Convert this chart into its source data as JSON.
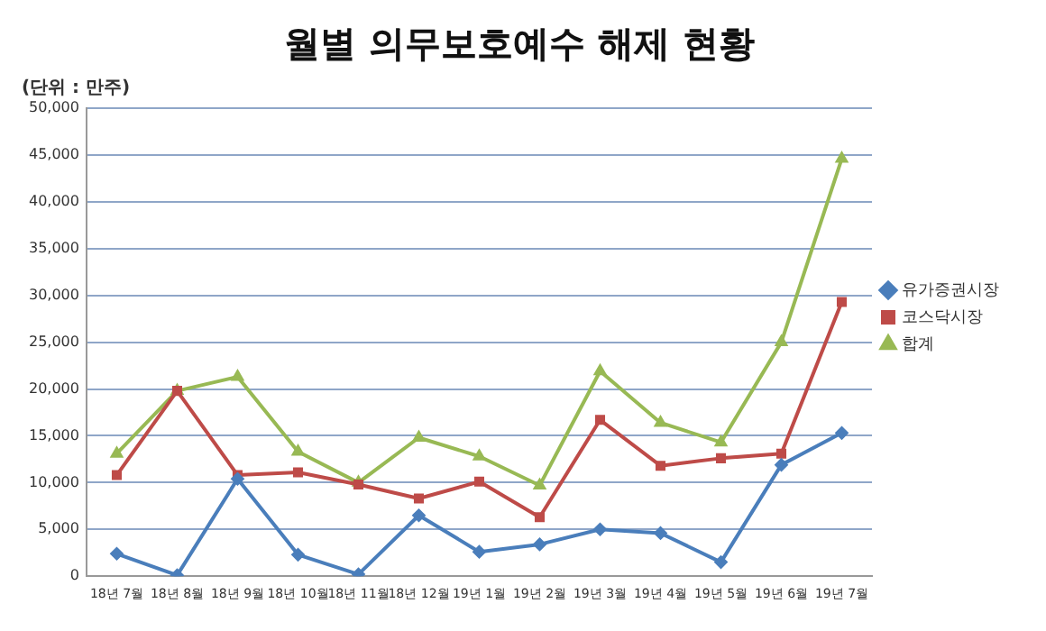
{
  "chart_data": {
    "type": "line",
    "title": "월별 의무보호예수 해제 현황",
    "ylabel": "(단위 : 만주)",
    "categories": [
      "18년 7월",
      "18년 8월",
      "18년 9월",
      "18년 10월",
      "18년 11월",
      "18년 12월",
      "19년 1월",
      "19년 2월",
      "19년 3월",
      "19년 4월",
      "19년 5월",
      "19년 6월",
      "19년 7월"
    ],
    "series": [
      {
        "name": "유가증권시장",
        "color": "#4a7ebb",
        "marker": "diamond",
        "values": [
          2400,
          100,
          10400,
          2300,
          200,
          6500,
          2600,
          3400,
          5000,
          4600,
          1500,
          11900,
          15300
        ]
      },
      {
        "name": "코스닥시장",
        "color": "#be4b48",
        "marker": "square",
        "values": [
          10800,
          19800,
          10800,
          11100,
          9800,
          8300,
          10100,
          6300,
          16700,
          11800,
          12600,
          13100,
          29300
        ]
      },
      {
        "name": "합계",
        "color": "#98b954",
        "marker": "triangle",
        "values": [
          13100,
          19800,
          21300,
          13300,
          10000,
          14800,
          12800,
          9700,
          21900,
          16400,
          14300,
          25000,
          44600
        ]
      }
    ],
    "ylim": [
      0,
      50000
    ],
    "yticks": [
      0,
      {
        "value": 5000,
        "label": "5,000"
      },
      {
        "value": 10000,
        "label": "10,000"
      },
      {
        "value": 15000,
        "label": "15,000"
      },
      {
        "value": 20000,
        "label": "20,000"
      },
      {
        "value": 25000,
        "label": "25,000"
      },
      {
        "value": 30000,
        "label": "30,000"
      },
      {
        "value": 35000,
        "label": "35,000"
      },
      {
        "value": 40000,
        "label": "40,000"
      },
      {
        "value": 45000,
        "label": "45,000"
      },
      {
        "value": 50000,
        "label": "50,000"
      }
    ],
    "grid": "y",
    "legend": "right",
    "line_style": "solid"
  }
}
